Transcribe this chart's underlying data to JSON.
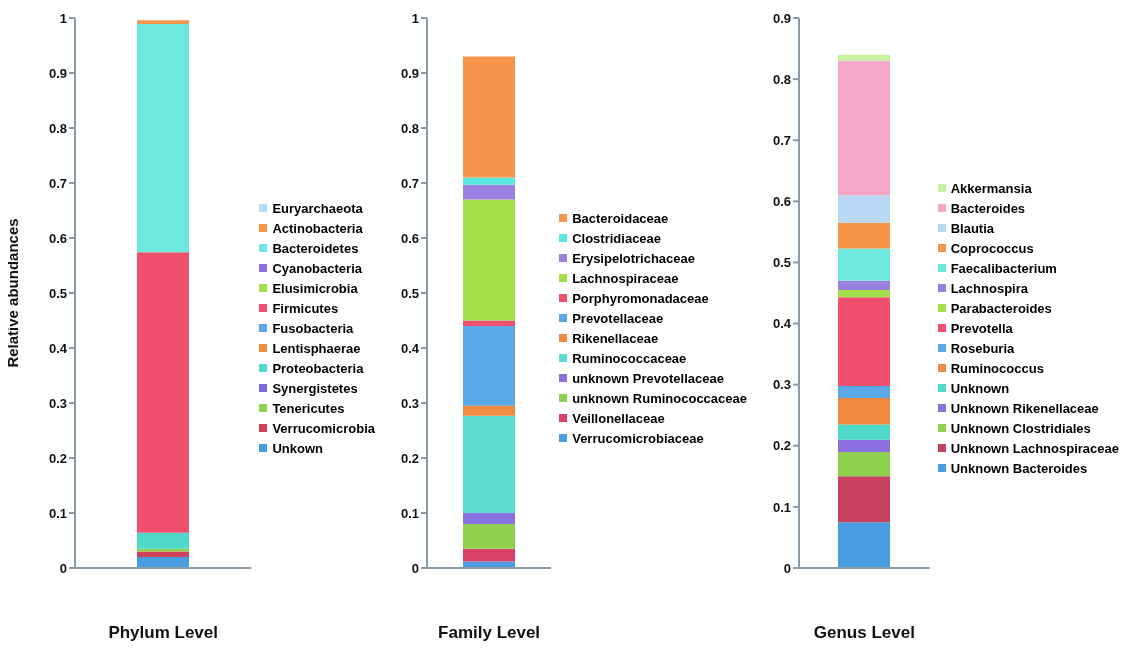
{
  "chart_data": [
    {
      "type": "bar",
      "stacked": true,
      "xlabel": "Phylum Level",
      "ylabel": "Relative abundances",
      "categories": [
        null
      ],
      "ylim": [
        0,
        1
      ],
      "yticks": [
        0,
        0.1,
        0.2,
        0.3,
        0.4,
        0.5,
        0.6,
        0.7,
        0.8,
        0.9,
        1
      ],
      "grid": false,
      "legend": "right",
      "series": [
        {
          "name": "Unkown",
          "color": "#4a9de0",
          "values": [
            0.02
          ]
        },
        {
          "name": "Verrucomicrobia",
          "color": "#d0405a",
          "values": [
            0.01
          ]
        },
        {
          "name": "Tenericutes",
          "color": "#8fd14f",
          "values": [
            0.005
          ]
        },
        {
          "name": "Synergistetes",
          "color": "#7b68d8",
          "values": [
            null
          ]
        },
        {
          "name": "Proteobacteria",
          "color": "#4fd9c8",
          "values": [
            0.029
          ]
        },
        {
          "name": "Lentisphaerae",
          "color": "#f08a40",
          "values": [
            null
          ]
        },
        {
          "name": "Fusobacteria",
          "color": "#5aa8e8",
          "values": [
            null
          ]
        },
        {
          "name": "Firmicutes",
          "color": "#f0506e",
          "values": [
            0.51
          ]
        },
        {
          "name": "Elusimicrobia",
          "color": "#a4e04a",
          "values": [
            null
          ]
        },
        {
          "name": "Cyanobacteria",
          "color": "#8a70e0",
          "values": [
            null
          ]
        },
        {
          "name": "Bacteroidetes",
          "color": "#6ee8dc",
          "values": [
            0.415
          ]
        },
        {
          "name": "Actinobacteria",
          "color": "#f5954a",
          "values": [
            0.007
          ]
        },
        {
          "name": "Euryarchaeota",
          "color": "#b8d8f5",
          "values": [
            null
          ]
        }
      ]
    },
    {
      "type": "bar",
      "stacked": true,
      "xlabel": "Family Level",
      "categories": [
        null
      ],
      "ylim": [
        0,
        1
      ],
      "yticks": [
        0,
        0.1,
        0.2,
        0.3,
        0.4,
        0.5,
        0.6,
        0.7,
        0.8,
        0.9,
        1
      ],
      "grid": false,
      "legend": "right",
      "series": [
        {
          "name": "Verrucomicrobiaceae",
          "color": "#4a9de0",
          "values": [
            0.012
          ]
        },
        {
          "name": "Veillonellaceae",
          "color": "#d8406a",
          "values": [
            0.023
          ]
        },
        {
          "name": "unknown Ruminococcaceae",
          "color": "#8fd14f",
          "values": [
            0.045
          ]
        },
        {
          "name": "unknown Prevotellaceae",
          "color": "#8a70e0",
          "values": [
            0.02
          ]
        },
        {
          "name": "Ruminococcaceae",
          "color": "#5fdcd0",
          "values": [
            0.177
          ]
        },
        {
          "name": "Rikenellaceae",
          "color": "#f08a40",
          "values": [
            0.018
          ]
        },
        {
          "name": "Prevotellaceae",
          "color": "#5aa8e8",
          "values": [
            0.145
          ]
        },
        {
          "name": "Porphyromonadaceae",
          "color": "#f0506e",
          "values": [
            0.01
          ]
        },
        {
          "name": "Lachnospiraceae",
          "color": "#a4e04a",
          "values": [
            0.22
          ]
        },
        {
          "name": "Erysipelotrichaceae",
          "color": "#9a80e0",
          "values": [
            0.027
          ]
        },
        {
          "name": "Clostridiaceae",
          "color": "#5ae8e0",
          "values": [
            0.013
          ]
        },
        {
          "name": "Bacteroidaceae",
          "color": "#f5944a",
          "values": [
            0.22
          ]
        }
      ]
    },
    {
      "type": "bar",
      "stacked": true,
      "xlabel": "Genus Level",
      "categories": [
        null
      ],
      "ylim": [
        0,
        0.9
      ],
      "yticks": [
        0,
        0.1,
        0.2,
        0.3,
        0.4,
        0.5,
        0.6,
        0.7,
        0.8,
        0.9
      ],
      "grid": false,
      "legend": "right",
      "series": [
        {
          "name": "Unknown Bacteroides",
          "color": "#4a9de0",
          "values": [
            0.075
          ]
        },
        {
          "name": "Unknown Lachnospiraceae",
          "color": "#c84060",
          "values": [
            0.075
          ]
        },
        {
          "name": "Unknown Clostridiales",
          "color": "#8fd14f",
          "values": [
            0.04
          ]
        },
        {
          "name": "Unknown Rikenellaceae",
          "color": "#8a70e0",
          "values": [
            0.02
          ]
        },
        {
          "name": "Unknown",
          "color": "#4fd9c8",
          "values": [
            0.025
          ]
        },
        {
          "name": "Ruminococcus",
          "color": "#f08a40",
          "values": [
            0.043
          ]
        },
        {
          "name": "Roseburia",
          "color": "#5aa8e8",
          "values": [
            0.02
          ]
        },
        {
          "name": "Prevotella",
          "color": "#f0506e",
          "values": [
            0.145
          ]
        },
        {
          "name": "Parabacteroides",
          "color": "#a4e04a",
          "values": [
            0.012
          ]
        },
        {
          "name": "Lachnospira",
          "color": "#9a80e0",
          "values": [
            0.015
          ]
        },
        {
          "name": "Faecalibacterium",
          "color": "#6ee8dc",
          "values": [
            0.053
          ]
        },
        {
          "name": "Coprococcus",
          "color": "#f5954a",
          "values": [
            0.042
          ]
        },
        {
          "name": "Blautia",
          "color": "#b8d8f5",
          "values": [
            0.045
          ]
        },
        {
          "name": "Bacteroides",
          "color": "#f4a8c8",
          "values": [
            0.22
          ]
        },
        {
          "name": "Akkermansia",
          "color": "#c8f0a0",
          "values": [
            0.01
          ]
        }
      ]
    }
  ]
}
